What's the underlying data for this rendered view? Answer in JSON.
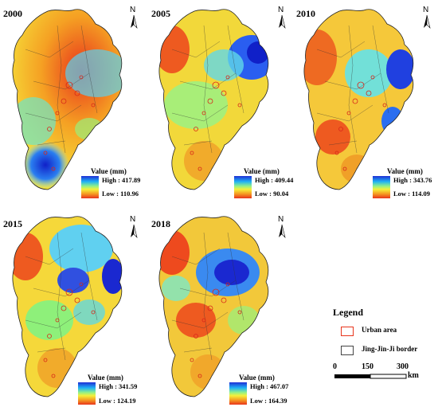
{
  "panels": [
    {
      "year": "2000",
      "high_label": "High : 417.89",
      "low_label": "Low : 110.96"
    },
    {
      "year": "2005",
      "high_label": "High : 409.44",
      "low_label": "Low : 90.04"
    },
    {
      "year": "2010",
      "high_label": "High : 343.76",
      "low_label": "Low : 114.09"
    },
    {
      "year": "2015",
      "high_label": "High : 341.59",
      "low_label": "Low : 124.19"
    },
    {
      "year": "2018",
      "high_label": "High : 467.07",
      "low_label": "Low : 164.39"
    }
  ],
  "ramp_title": "Value (mm)",
  "north_letter": "N",
  "legend": {
    "title": "Legend",
    "urban": "Urban area",
    "border": "Jing-Jin-Ji border",
    "urban_color": "#e8341c",
    "border_color": "#444444"
  },
  "scale": {
    "ticks": [
      "0",
      "150",
      "300"
    ],
    "unit": "km"
  },
  "colors": {
    "high": "#1f2fd6",
    "mid": "#f5f03a",
    "low": "#e8341c"
  }
}
